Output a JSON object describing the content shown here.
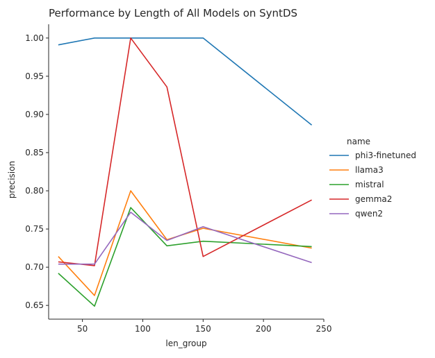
{
  "chart_data": {
    "type": "line",
    "title": "Performance by Length of All Models on SyntDS",
    "xlabel": "len_group",
    "ylabel": "precision",
    "xlim": [
      22,
      250
    ],
    "ylim": [
      0.632,
      1.018
    ],
    "xticks": [
      50,
      100,
      150,
      200,
      250
    ],
    "xtick_labels": [
      "50",
      "100",
      "150",
      "200",
      "250"
    ],
    "yticks": [
      0.65,
      0.7,
      0.75,
      0.8,
      0.85,
      0.9,
      0.95,
      1.0
    ],
    "ytick_labels": [
      "0.65",
      "0.70",
      "0.75",
      "0.80",
      "0.85",
      "0.90",
      "0.95",
      "1.00"
    ],
    "grid": false,
    "legend": {
      "title": "name",
      "placement": "right-outside"
    },
    "x": [
      30,
      60,
      90,
      120,
      150,
      240
    ],
    "series": [
      {
        "name": "phi3-finetuned",
        "color": "#1f77b4",
        "values": [
          0.991,
          1.0,
          1.0,
          1.0,
          1.0,
          0.886
        ]
      },
      {
        "name": "llama3",
        "color": "#ff7f0e",
        "values": [
          0.714,
          0.663,
          0.8,
          0.736,
          0.751,
          0.725
        ]
      },
      {
        "name": "mistral",
        "color": "#2ca02c",
        "values": [
          0.692,
          0.649,
          0.778,
          0.728,
          0.734,
          0.727
        ]
      },
      {
        "name": "gemma2",
        "color": "#d62728",
        "values": [
          0.707,
          0.702,
          1.0,
          0.936,
          0.714,
          0.788
        ]
      },
      {
        "name": "qwen2",
        "color": "#9467bd",
        "values": [
          0.704,
          0.704,
          0.772,
          0.735,
          0.753,
          0.706
        ]
      }
    ]
  }
}
